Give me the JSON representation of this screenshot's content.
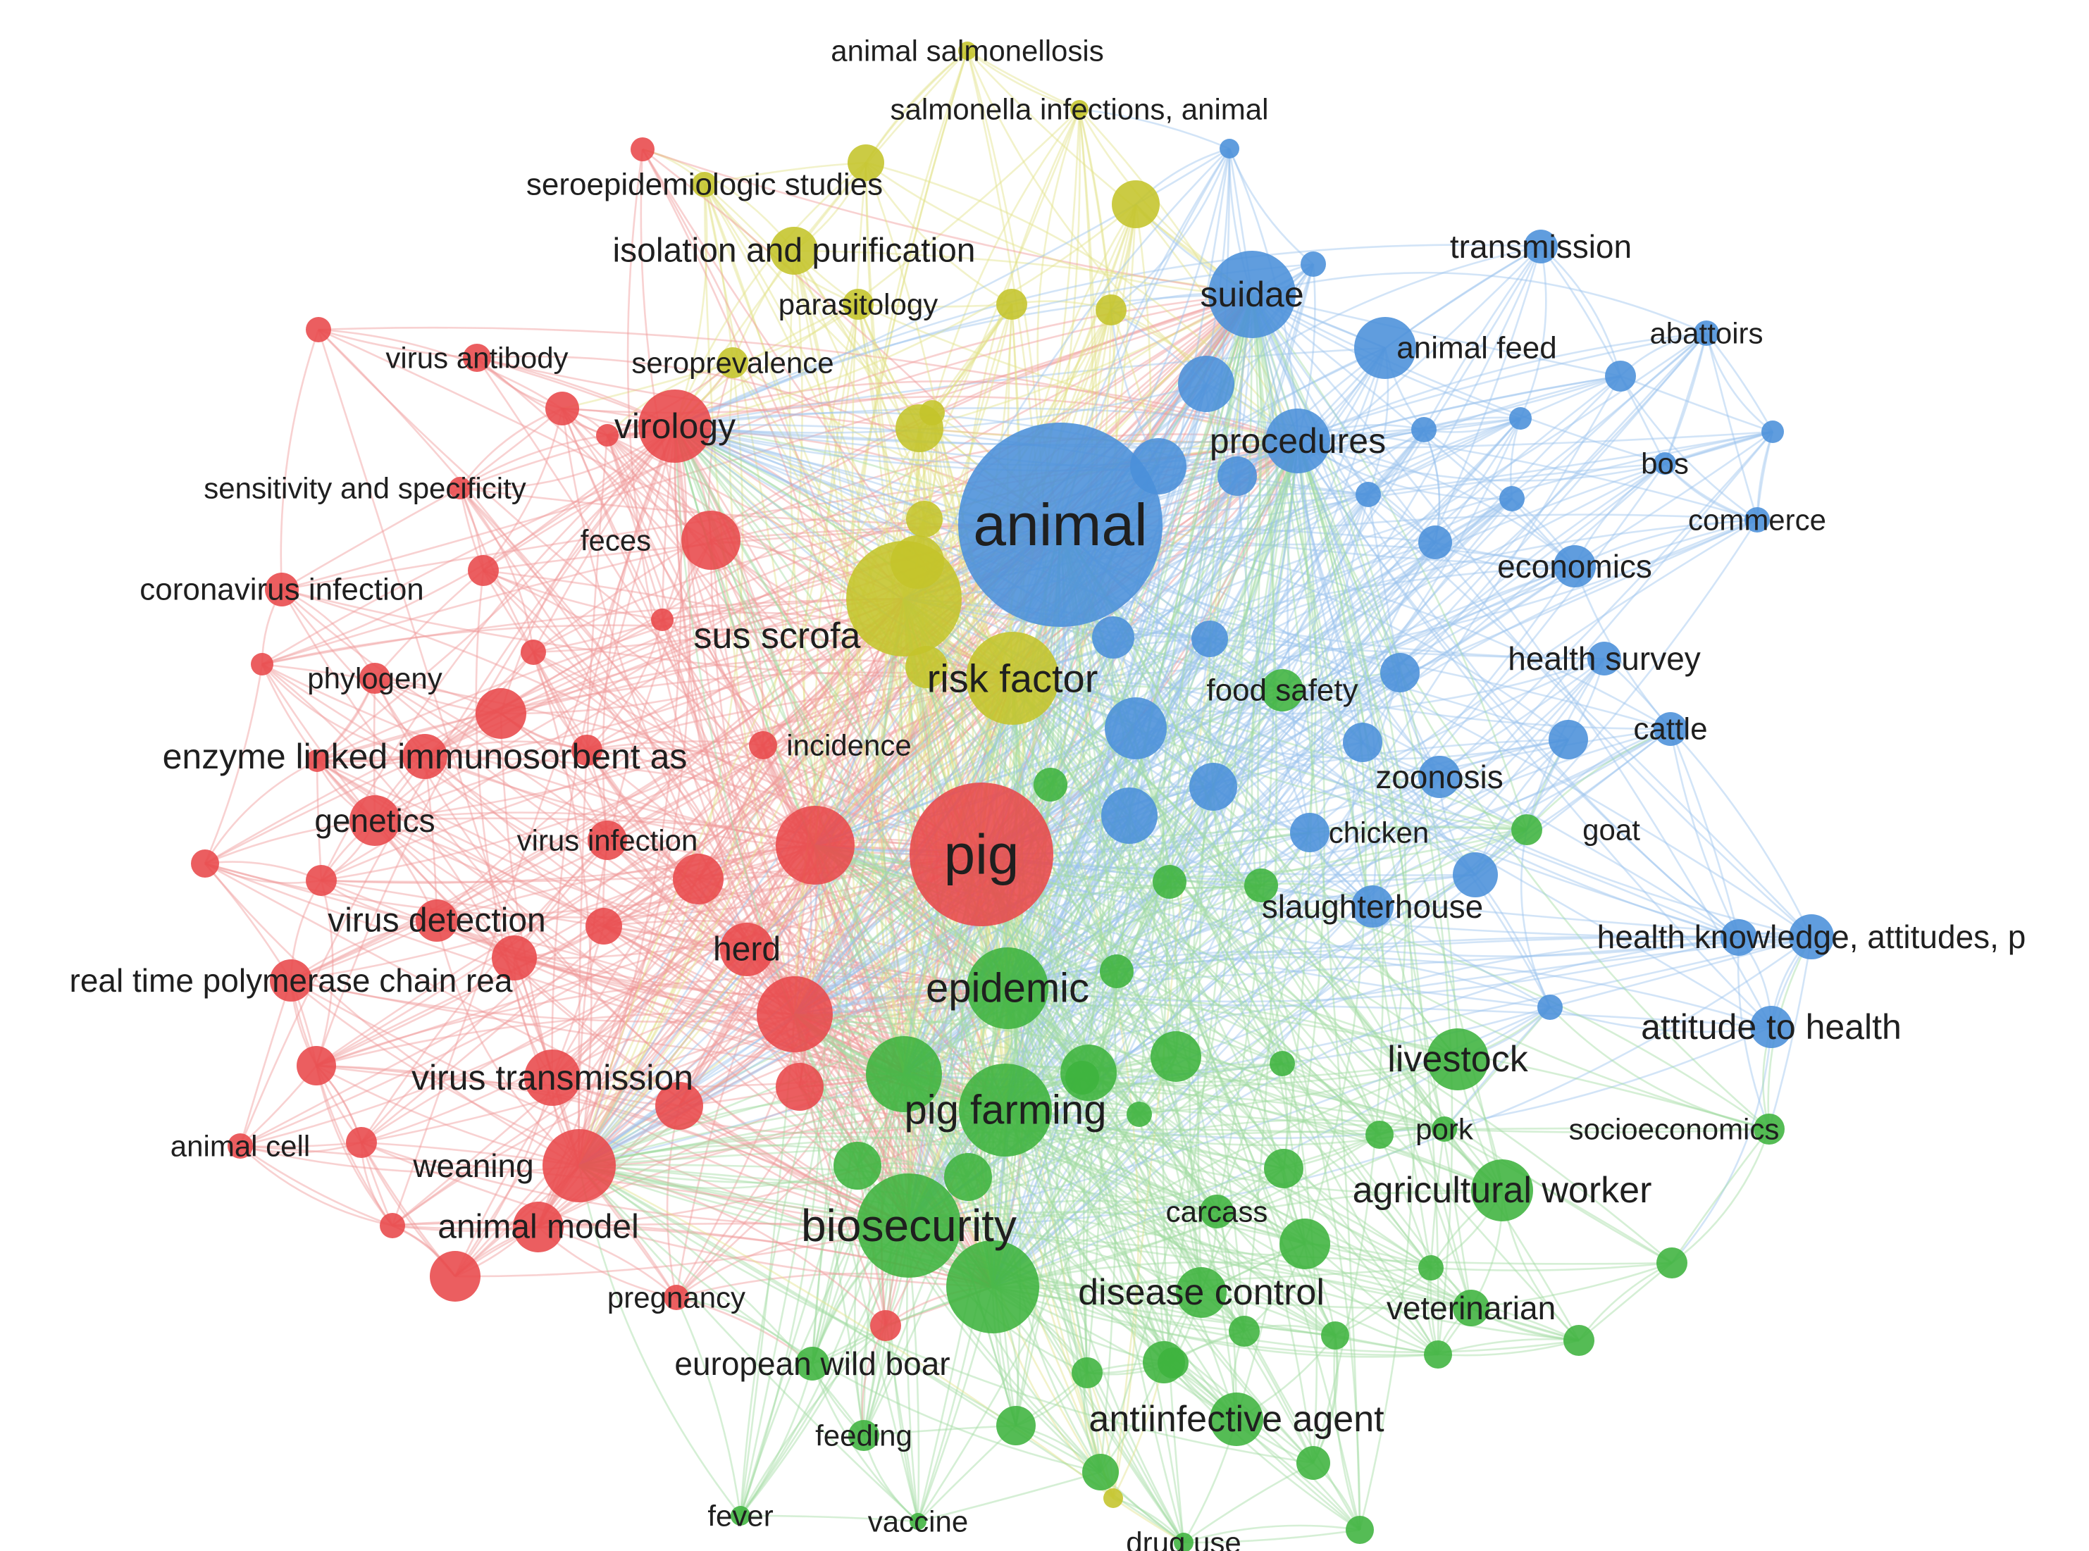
{
  "cluster_colors": {
    "red": "#e8484a",
    "yellow": "#c4c42a",
    "blue": "#4a90d9",
    "green": "#3db33d"
  },
  "link_colors": {
    "red": "#f09a9a",
    "yellow": "#e3e38a",
    "blue": "#9cc4ee",
    "green": "#a2dba2"
  },
  "labeled_nodes": [
    {
      "id": "animal",
      "label": "animal",
      "cluster": "blue",
      "weight": 10
    },
    {
      "id": "pig",
      "label": "pig",
      "cluster": "red",
      "weight": 10
    },
    {
      "id": "suidae",
      "label": "suidae",
      "cluster": "blue",
      "weight": 6
    },
    {
      "id": "procedures",
      "label": "procedures",
      "cluster": "blue",
      "weight": 6
    },
    {
      "id": "risk_factor",
      "label": "risk factor",
      "cluster": "yellow",
      "weight": 7
    },
    {
      "id": "sus_scrofa",
      "label": "sus scrofa",
      "cluster": "yellow",
      "weight": 6
    },
    {
      "id": "virology",
      "label": "virology",
      "cluster": "red",
      "weight": 6
    },
    {
      "id": "isolation",
      "label": "isolation and purification",
      "cluster": "yellow",
      "weight": 5
    },
    {
      "id": "seroepi",
      "label": "seroepidemiologic studies",
      "cluster": "yellow",
      "weight": 4
    },
    {
      "id": "animal_salm",
      "label": "animal salmonellosis",
      "cluster": "yellow",
      "weight": 2
    },
    {
      "id": "salm_inf",
      "label": "salmonella infections, animal",
      "cluster": "yellow",
      "weight": 2
    },
    {
      "id": "parasitology",
      "label": "parasitology",
      "cluster": "yellow",
      "weight": 3
    },
    {
      "id": "seroprevalence",
      "label": "seroprevalence",
      "cluster": "yellow",
      "weight": 3
    },
    {
      "id": "virus_antibody",
      "label": "virus antibody",
      "cluster": "red",
      "weight": 3
    },
    {
      "id": "sens_spec",
      "label": "sensitivity and specificity",
      "cluster": "red",
      "weight": 3
    },
    {
      "id": "feces",
      "label": "feces",
      "cluster": "red",
      "weight": 3
    },
    {
      "id": "coronavirus",
      "label": "coronavirus infection",
      "cluster": "red",
      "weight": 4
    },
    {
      "id": "phylogeny",
      "label": "phylogeny",
      "cluster": "red",
      "weight": 3
    },
    {
      "id": "elisa",
      "label": "enzyme linked immunosorbent as",
      "cluster": "red",
      "weight": 5
    },
    {
      "id": "incidence",
      "label": "incidence",
      "cluster": "red",
      "weight": 3
    },
    {
      "id": "genetics",
      "label": "genetics",
      "cluster": "red",
      "weight": 5
    },
    {
      "id": "virus_infection",
      "label": "virus infection",
      "cluster": "red",
      "weight": 3
    },
    {
      "id": "virus_detection",
      "label": "virus detection",
      "cluster": "red",
      "weight": 5
    },
    {
      "id": "herd",
      "label": "herd",
      "cluster": "red",
      "weight": 5
    },
    {
      "id": "rt_pcr",
      "label": "real time polymerase chain rea",
      "cluster": "red",
      "weight": 4
    },
    {
      "id": "virus_transmission",
      "label": "virus transmission",
      "cluster": "red",
      "weight": 5
    },
    {
      "id": "animal_cell",
      "label": "animal cell",
      "cluster": "red",
      "weight": 3
    },
    {
      "id": "weaning",
      "label": "weaning",
      "cluster": "red",
      "weight": 5
    },
    {
      "id": "animal_model",
      "label": "animal model",
      "cluster": "red",
      "weight": 5
    },
    {
      "id": "pregnancy",
      "label": "pregnancy",
      "cluster": "red",
      "weight": 3
    },
    {
      "id": "transmission",
      "label": "transmission",
      "cluster": "blue",
      "weight": 4
    },
    {
      "id": "animal_feed",
      "label": "animal feed",
      "cluster": "blue",
      "weight": 4
    },
    {
      "id": "abattoirs",
      "label": "abattoirs",
      "cluster": "blue",
      "weight": 3
    },
    {
      "id": "bos",
      "label": "bos",
      "cluster": "blue",
      "weight": 3
    },
    {
      "id": "commerce",
      "label": "commerce",
      "cluster": "blue",
      "weight": 3
    },
    {
      "id": "economics",
      "label": "economics",
      "cluster": "blue",
      "weight": 4
    },
    {
      "id": "health_survey",
      "label": "health survey",
      "cluster": "blue",
      "weight": 4
    },
    {
      "id": "food_safety",
      "label": "food safety",
      "cluster": "green",
      "weight": 4
    },
    {
      "id": "cattle",
      "label": "cattle",
      "cluster": "blue",
      "weight": 4
    },
    {
      "id": "zoonosis",
      "label": "zoonosis",
      "cluster": "blue",
      "weight": 4
    },
    {
      "id": "chicken",
      "label": "chicken",
      "cluster": "blue",
      "weight": 3
    },
    {
      "id": "goat",
      "label": "goat",
      "cluster": "green",
      "weight": 3
    },
    {
      "id": "slaughterhouse",
      "label": "slaughterhouse",
      "cluster": "blue",
      "weight": 4
    },
    {
      "id": "health_knowledge",
      "label": "health knowledge, attitudes, p",
      "cluster": "blue",
      "weight": 4
    },
    {
      "id": "attitude_health",
      "label": "attitude to health",
      "cluster": "blue",
      "weight": 4
    },
    {
      "id": "epidemic",
      "label": "epidemic",
      "cluster": "green",
      "weight": 6
    },
    {
      "id": "livestock",
      "label": "livestock",
      "cluster": "green",
      "weight": 5
    },
    {
      "id": "pig_farming",
      "label": "pig farming",
      "cluster": "green",
      "weight": 6
    },
    {
      "id": "pork",
      "label": "pork",
      "cluster": "green",
      "weight": 3
    },
    {
      "id": "socioeconomics",
      "label": "socioeconomics",
      "cluster": "green",
      "weight": 3
    },
    {
      "id": "agri_worker",
      "label": "agricultural worker",
      "cluster": "green",
      "weight": 5
    },
    {
      "id": "biosecurity",
      "label": "biosecurity",
      "cluster": "green",
      "weight": 7
    },
    {
      "id": "carcass",
      "label": "carcass",
      "cluster": "green",
      "weight": 3
    },
    {
      "id": "disease_control",
      "label": "disease control",
      "cluster": "green",
      "weight": 5
    },
    {
      "id": "veterinarian",
      "label": "veterinarian",
      "cluster": "green",
      "weight": 4
    },
    {
      "id": "wild_boar",
      "label": "european wild boar",
      "cluster": "green",
      "weight": 4
    },
    {
      "id": "antiinfective",
      "label": "antiinfective agent",
      "cluster": "green",
      "weight": 5
    },
    {
      "id": "feeding",
      "label": "feeding",
      "cluster": "green",
      "weight": 3
    },
    {
      "id": "fever",
      "label": "fever",
      "cluster": "green",
      "weight": 2
    },
    {
      "id": "vaccine",
      "label": "vaccine",
      "cluster": "green",
      "weight": 2
    },
    {
      "id": "drug_use",
      "label": "drug use",
      "cluster": "green",
      "weight": 2
    }
  ],
  "unlabeled_nodes": [
    {
      "cluster": "red"
    },
    {
      "cluster": "red"
    },
    {
      "cluster": "red"
    },
    {
      "cluster": "red"
    },
    {
      "cluster": "red"
    },
    {
      "cluster": "red"
    },
    {
      "cluster": "red"
    },
    {
      "cluster": "red"
    },
    {
      "cluster": "red"
    },
    {
      "cluster": "red"
    },
    {
      "cluster": "red"
    },
    {
      "cluster": "red"
    },
    {
      "cluster": "red"
    },
    {
      "cluster": "red"
    },
    {
      "cluster": "red"
    },
    {
      "cluster": "red"
    },
    {
      "cluster": "red"
    },
    {
      "cluster": "red"
    },
    {
      "cluster": "red"
    },
    {
      "cluster": "red"
    },
    {
      "cluster": "red"
    },
    {
      "cluster": "red"
    },
    {
      "cluster": "red"
    },
    {
      "cluster": "red"
    },
    {
      "cluster": "red"
    },
    {
      "cluster": "yellow"
    },
    {
      "cluster": "yellow"
    },
    {
      "cluster": "yellow"
    },
    {
      "cluster": "yellow"
    },
    {
      "cluster": "yellow"
    },
    {
      "cluster": "yellow"
    },
    {
      "cluster": "yellow"
    },
    {
      "cluster": "yellow"
    },
    {
      "cluster": "yellow"
    },
    {
      "cluster": "yellow"
    },
    {
      "cluster": "blue"
    },
    {
      "cluster": "blue"
    },
    {
      "cluster": "blue"
    },
    {
      "cluster": "blue"
    },
    {
      "cluster": "blue"
    },
    {
      "cluster": "blue"
    },
    {
      "cluster": "blue"
    },
    {
      "cluster": "blue"
    },
    {
      "cluster": "blue"
    },
    {
      "cluster": "blue"
    },
    {
      "cluster": "blue"
    },
    {
      "cluster": "blue"
    },
    {
      "cluster": "blue"
    },
    {
      "cluster": "blue"
    },
    {
      "cluster": "blue"
    },
    {
      "cluster": "blue"
    },
    {
      "cluster": "blue"
    },
    {
      "cluster": "blue"
    },
    {
      "cluster": "blue"
    },
    {
      "cluster": "blue"
    },
    {
      "cluster": "blue"
    },
    {
      "cluster": "blue"
    },
    {
      "cluster": "blue"
    },
    {
      "cluster": "green"
    },
    {
      "cluster": "green"
    },
    {
      "cluster": "green"
    },
    {
      "cluster": "green"
    },
    {
      "cluster": "green"
    },
    {
      "cluster": "green"
    },
    {
      "cluster": "green"
    },
    {
      "cluster": "green"
    },
    {
      "cluster": "green"
    },
    {
      "cluster": "green"
    },
    {
      "cluster": "green"
    },
    {
      "cluster": "green"
    },
    {
      "cluster": "green"
    },
    {
      "cluster": "green"
    },
    {
      "cluster": "green"
    },
    {
      "cluster": "green"
    },
    {
      "cluster": "green"
    },
    {
      "cluster": "green"
    },
    {
      "cluster": "green"
    },
    {
      "cluster": "green"
    },
    {
      "cluster": "green"
    },
    {
      "cluster": "green"
    },
    {
      "cluster": "green"
    },
    {
      "cluster": "green"
    },
    {
      "cluster": "green"
    },
    {
      "cluster": "green"
    },
    {
      "cluster": "green"
    },
    {
      "cluster": "green"
    },
    {
      "cluster": "green"
    }
  ]
}
